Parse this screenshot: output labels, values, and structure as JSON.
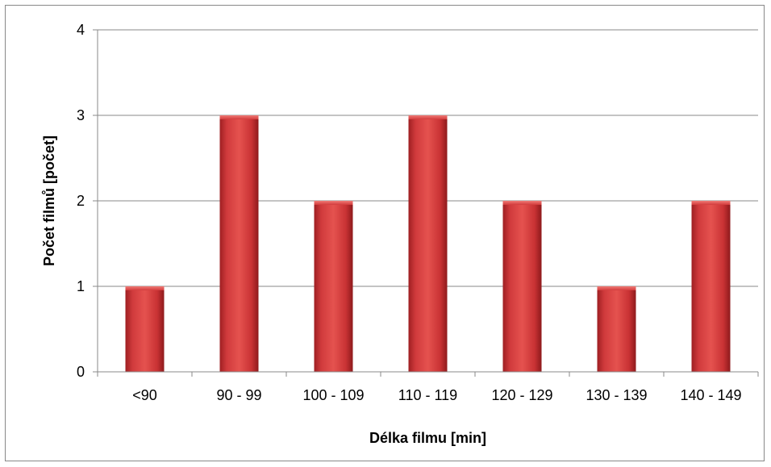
{
  "chart_data": {
    "type": "bar",
    "title": "",
    "xlabel": "Délka filmu [min]",
    "ylabel": "Počet filmů [počet]",
    "categories": [
      "<90",
      "90 - 99",
      "100 - 109",
      "110 - 119",
      "120 - 129",
      "130 - 139",
      "140 - 149"
    ],
    "values": [
      1,
      3,
      2,
      3,
      2,
      1,
      2
    ],
    "ylim": [
      0,
      4
    ],
    "yticks": [
      "0",
      "1",
      "2",
      "3",
      "4"
    ],
    "grid": true,
    "legend": "none",
    "bar_color": "#d83c3c"
  }
}
